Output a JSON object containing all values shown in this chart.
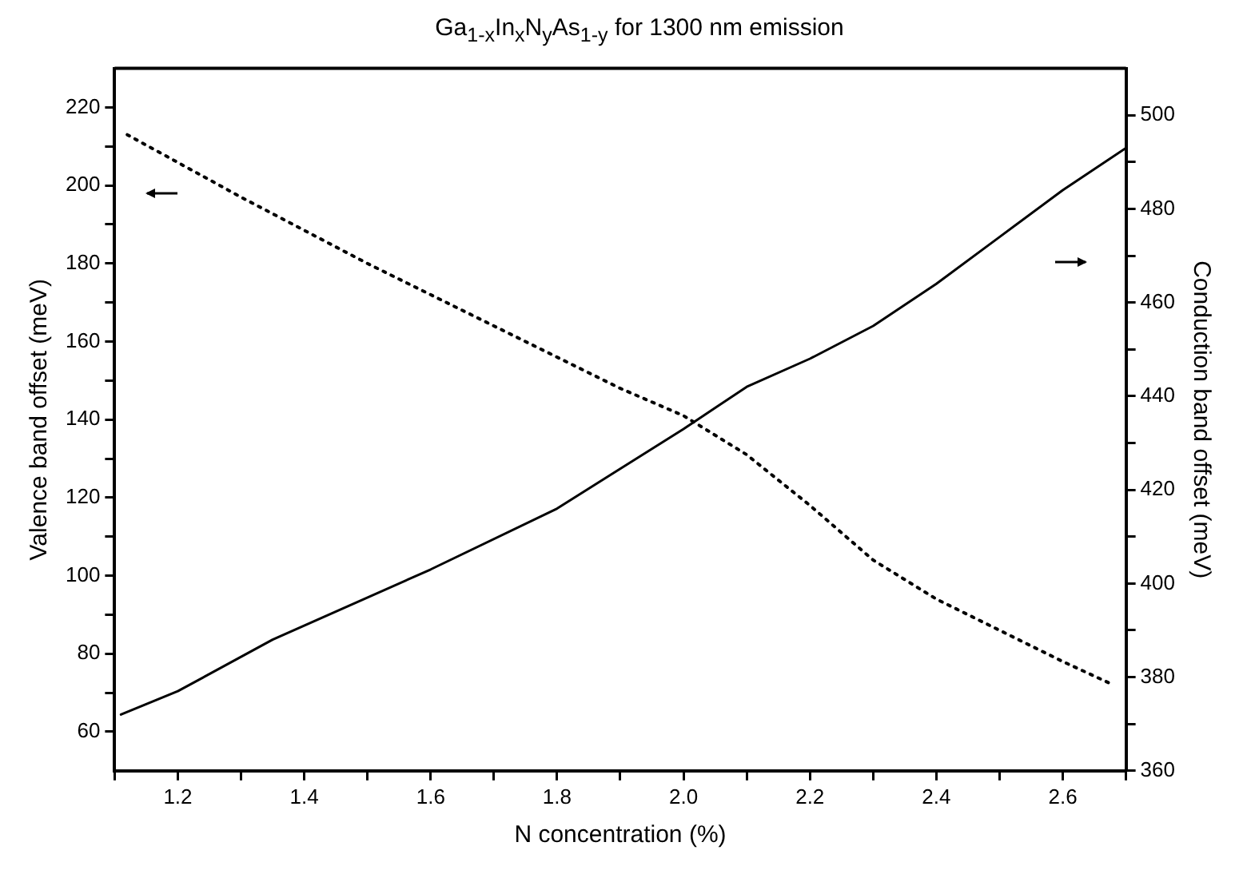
{
  "chart_data": {
    "type": "line",
    "title": "Ga$_{1-x}$In$_{x}$N$_{y}$As$_{1-y}$ for 1300 nm emission",
    "xlabel": "N concentration (%)",
    "ylabel": "Valence band offset (meV)",
    "y2label": "Conduction band offset (meV)",
    "xlim": [
      1.1,
      2.7
    ],
    "xticks": [
      {
        "value": 1.1,
        "label": null
      },
      1.2,
      {
        "value": 1.3,
        "label": null
      },
      1.4,
      {
        "value": 1.5,
        "label": null
      },
      1.6,
      {
        "value": 1.7,
        "label": null
      },
      1.8,
      {
        "value": 1.9,
        "label": null
      },
      {
        "value": 2.0,
        "label": "2.0"
      },
      {
        "value": 2.1,
        "label": null
      },
      2.2,
      {
        "value": 2.3,
        "label": null
      },
      2.4,
      {
        "value": 2.5,
        "label": null
      },
      2.6,
      {
        "value": 2.7,
        "label": null
      }
    ],
    "ylim": [
      50,
      230
    ],
    "yticks": [
      60,
      {
        "value": 70,
        "label": null
      },
      80,
      {
        "value": 90,
        "label": null
      },
      100,
      {
        "value": 110,
        "label": null
      },
      120,
      {
        "value": 130,
        "label": null
      },
      140,
      {
        "value": 150,
        "label": null
      },
      160,
      {
        "value": 170,
        "label": null
      },
      180,
      {
        "value": 190,
        "label": null
      },
      200,
      {
        "value": 210,
        "label": null
      },
      220
    ],
    "y2lim": [
      360,
      510
    ],
    "y2ticks": [
      360,
      {
        "value": 370,
        "label": null
      },
      380,
      {
        "value": 390,
        "label": null
      },
      400,
      {
        "value": 410,
        "label": null
      },
      420,
      {
        "value": 430,
        "label": null
      },
      440,
      {
        "value": 450,
        "label": null
      },
      460,
      {
        "value": 470,
        "label": null
      },
      480,
      {
        "value": 490,
        "label": null
      },
      500
    ],
    "grid": false,
    "legend": false,
    "marker": "none",
    "series": [
      {
        "color": "#000000",
        "line_style": "dotted",
        "x": [
          1.12,
          1.3,
          1.5,
          1.7,
          1.9,
          2.0,
          2.1,
          2.2,
          2.3,
          2.4,
          2.5,
          2.6,
          2.68
        ],
        "values": [
          213,
          197,
          180,
          164,
          148,
          141,
          131,
          118,
          104,
          94,
          86,
          78,
          72
        ]
      },
      {
        "color": "#000000",
        "line_style": "solid",
        "axis": "y2",
        "x": [
          1.11,
          1.2,
          1.35,
          1.6,
          1.8,
          2.0,
          2.1,
          2.2,
          2.3,
          2.4,
          2.5,
          2.6,
          2.7
        ],
        "values": [
          372,
          377,
          388,
          403,
          416,
          433,
          442,
          448,
          455,
          464,
          474,
          484,
          493
        ]
      }
    ]
  }
}
